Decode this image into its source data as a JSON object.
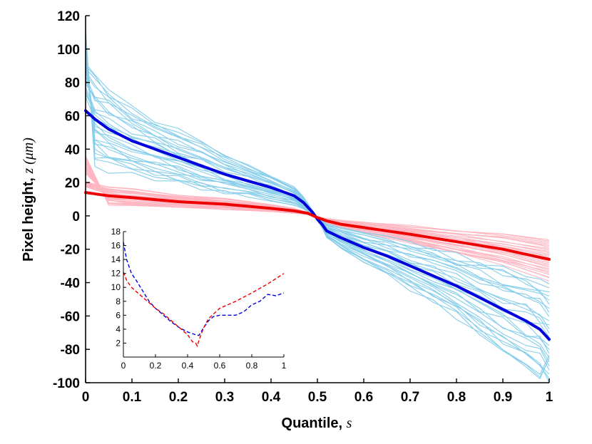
{
  "chart_data": [
    {
      "type": "line",
      "xlabel_text": "Quantile, ",
      "xlabel_symbol": "s",
      "ylabel_text": "Pixel height, ",
      "ylabel_symbol": "z (μm)",
      "xlim": [
        0,
        1
      ],
      "ylim": [
        -100,
        120
      ],
      "x_ticks": [
        "0",
        "0.1",
        "0.2",
        "0.3",
        "0.4",
        "0.5",
        "0.6",
        "0.7",
        "0.8",
        "0.9",
        "1"
      ],
      "y_ticks": [
        "120",
        "100",
        "80",
        "60",
        "40",
        "20",
        "0",
        "-20",
        "-40",
        "-60",
        "-80",
        "-100"
      ],
      "colors": {
        "light_blue": "#87ceeb",
        "pink": "#ffb6c1",
        "blue": "#0000dd",
        "red": "#ee0000"
      },
      "series": [
        {
          "name": "mean-blue",
          "color": "#0000dd",
          "x": [
            0,
            0.02,
            0.05,
            0.1,
            0.15,
            0.2,
            0.25,
            0.3,
            0.35,
            0.4,
            0.45,
            0.47,
            0.49,
            0.5,
            0.51,
            0.52,
            0.55,
            0.6,
            0.65,
            0.7,
            0.75,
            0.8,
            0.85,
            0.9,
            0.95,
            0.98,
            1
          ],
          "y": [
            63,
            58,
            52,
            45,
            40,
            35,
            30,
            25,
            21,
            17,
            12,
            8,
            2,
            -2,
            -5,
            -9,
            -13,
            -19,
            -24,
            -30,
            -36,
            -42,
            -49,
            -56,
            -63,
            -68,
            -74
          ]
        },
        {
          "name": "mean-red",
          "color": "#ee0000",
          "x": [
            0,
            0.05,
            0.1,
            0.2,
            0.3,
            0.4,
            0.45,
            0.48,
            0.5,
            0.52,
            0.55,
            0.6,
            0.7,
            0.8,
            0.9,
            1
          ],
          "y": [
            14,
            12,
            11,
            8.5,
            7,
            4.5,
            3,
            1.5,
            -1,
            -3,
            -5,
            -7,
            -11,
            -15.5,
            -20,
            -26
          ]
        }
      ],
      "bands": [
        {
          "name": "light-blue-spread",
          "color": "#87ceeb",
          "count": 28,
          "upper_start": 112,
          "lower_end": -86
        },
        {
          "name": "pink-spread",
          "color": "#ffb6c1",
          "count": 28,
          "upper_start": 36,
          "lower_end": -40
        }
      ]
    },
    {
      "type": "line",
      "role": "inset",
      "xlim": [
        0,
        1
      ],
      "ylim": [
        0,
        18
      ],
      "x_ticks": [
        "0",
        "0.2",
        "0.4",
        "0.6",
        "0.8",
        "1"
      ],
      "y_ticks": [
        "18",
        "16",
        "14",
        "12",
        "10",
        "8",
        "6",
        "4",
        "2"
      ],
      "series": [
        {
          "name": "inset-blue",
          "color": "#0000dd",
          "style": "dashed",
          "x": [
            0,
            0.02,
            0.05,
            0.08,
            0.12,
            0.16,
            0.2,
            0.25,
            0.3,
            0.35,
            0.4,
            0.45,
            0.47,
            0.5,
            0.53,
            0.56,
            0.6,
            0.65,
            0.7,
            0.75,
            0.8,
            0.85,
            0.9,
            0.95,
            1
          ],
          "y": [
            16.5,
            14,
            12,
            11,
            9.5,
            8,
            7,
            6,
            5,
            4.2,
            3.6,
            3.2,
            3.1,
            4.2,
            5.2,
            5.8,
            6,
            6,
            6,
            6.5,
            7.5,
            8,
            9,
            8.8,
            9.2
          ]
        },
        {
          "name": "inset-red",
          "color": "#ee0000",
          "style": "dashed",
          "x": [
            0,
            0.02,
            0.05,
            0.1,
            0.15,
            0.2,
            0.25,
            0.3,
            0.35,
            0.4,
            0.43,
            0.45,
            0.46,
            0.48,
            0.5,
            0.53,
            0.6,
            0.7,
            0.8,
            0.9,
            1
          ],
          "y": [
            12.2,
            11,
            10,
            9,
            8,
            7,
            6.2,
            5.2,
            4.2,
            3.2,
            2.2,
            2,
            1.6,
            3,
            4.2,
            5.5,
            7,
            8,
            9.2,
            10.5,
            12
          ]
        }
      ]
    }
  ]
}
